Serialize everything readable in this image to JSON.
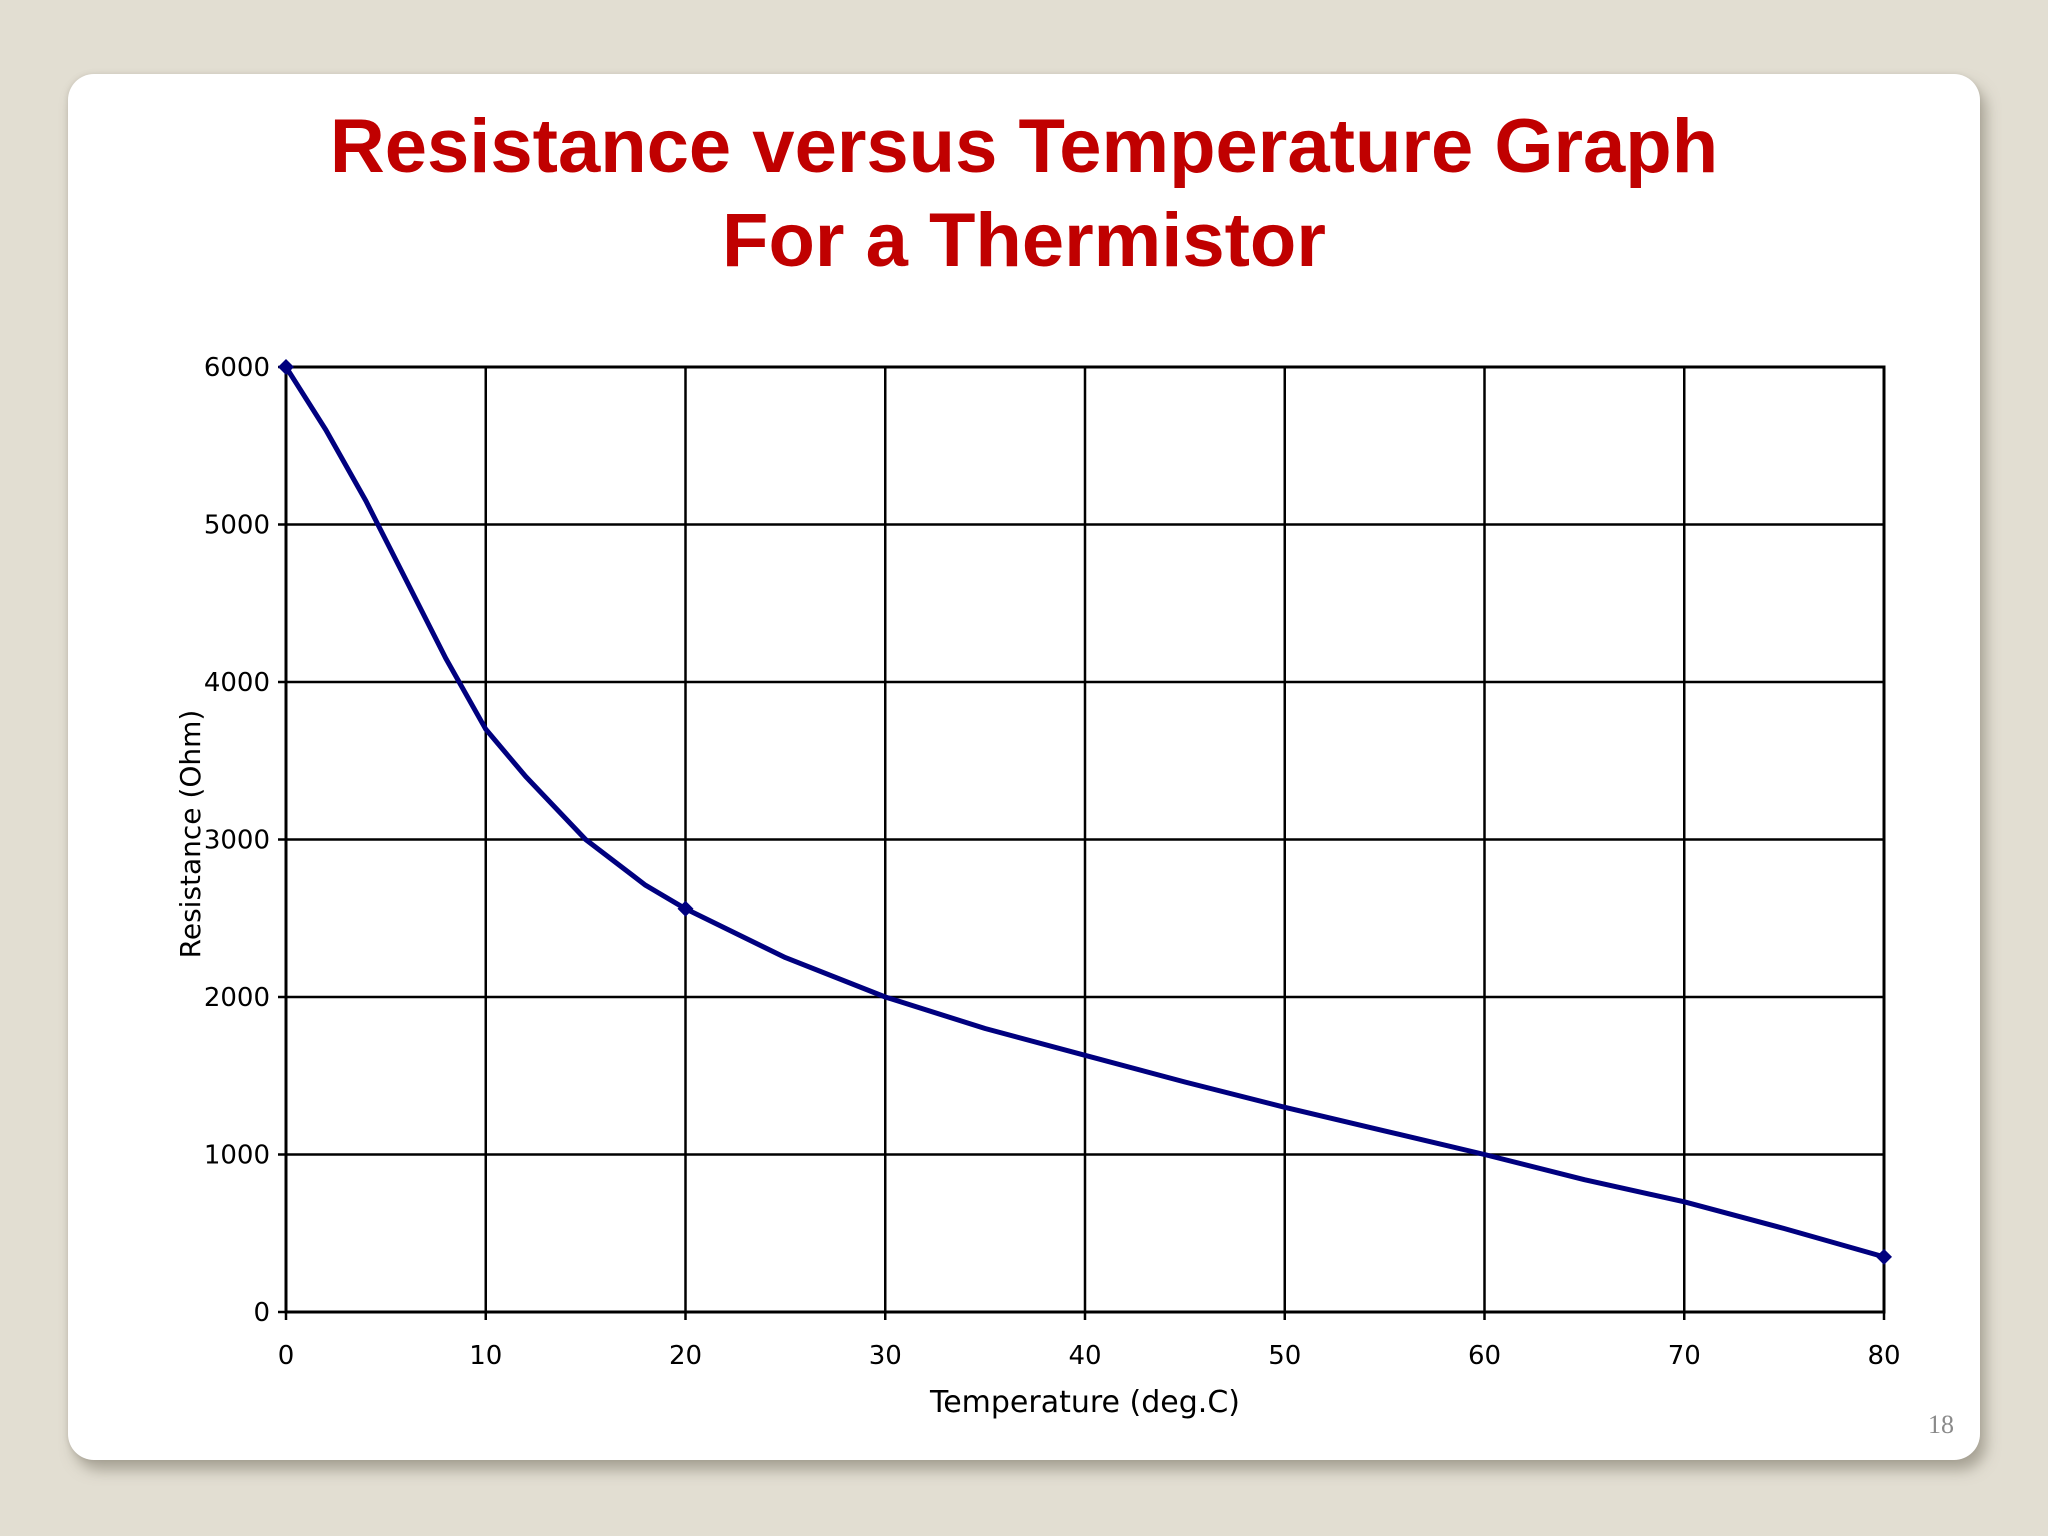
{
  "slide": {
    "title_line1": "Resistance versus Temperature Graph",
    "title_line2": "For a Thermistor",
    "page_number": "18",
    "background_color": "#e2ded2",
    "title_color": "#c00000"
  },
  "chart_data": {
    "type": "line",
    "title": "",
    "xlabel": "Temperature (deg.C)",
    "ylabel": "Resistance (Ohm)",
    "xlim": [
      0,
      80
    ],
    "ylim": [
      0,
      6000
    ],
    "x_ticks": [
      0,
      10,
      20,
      30,
      40,
      50,
      60,
      70,
      80
    ],
    "y_ticks": [
      0,
      1000,
      2000,
      3000,
      4000,
      5000,
      6000
    ],
    "grid": true,
    "legend": "none",
    "line_color": "#00007f",
    "series": [
      {
        "x": [
          0,
          2,
          4,
          5,
          6,
          8,
          10,
          12,
          15,
          18,
          20,
          25,
          30,
          35,
          40,
          45,
          50,
          55,
          60,
          65,
          70,
          75,
          80
        ],
        "values": [
          6000,
          5600,
          5150,
          4900,
          4650,
          4150,
          3700,
          3400,
          3000,
          2710,
          2560,
          2250,
          2000,
          1800,
          1630,
          1460,
          1300,
          1150,
          1000,
          840,
          700,
          530,
          350
        ]
      }
    ],
    "markers": [
      {
        "x": 0,
        "y": 6000
      },
      {
        "x": 20,
        "y": 2560
      },
      {
        "x": 80,
        "y": 350
      }
    ]
  }
}
